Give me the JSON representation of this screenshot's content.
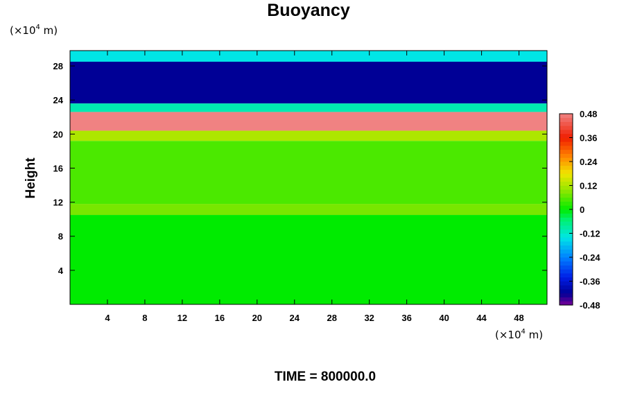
{
  "chart_data": {
    "type": "heatmap",
    "title": "Buoyancy",
    "xunit_prefix": "(×10",
    "xunit_exp": "4",
    "xunit_suffix": " m)",
    "yunit_prefix": "(×10",
    "yunit_exp": "4",
    "yunit_suffix": " m)",
    "ylabel": "Height",
    "xlabel": "",
    "xlim": [
      0,
      51
    ],
    "ylim": [
      0,
      29.8
    ],
    "xticks": [
      4,
      8,
      12,
      16,
      20,
      24,
      28,
      32,
      36,
      40,
      44,
      48
    ],
    "yticks": [
      4,
      8,
      12,
      16,
      20,
      24,
      28
    ],
    "colorbar": {
      "min": -0.48,
      "max": 0.48,
      "step": 0.02,
      "tick_values": [
        0.48,
        0.36,
        0.24,
        0.12,
        0,
        -0.12,
        -0.24,
        -0.36,
        -0.48
      ],
      "tick_labels": [
        "0.48",
        "0.36",
        "0.24",
        "0.12",
        "0",
        "-0.12",
        "-0.24",
        "-0.36",
        "-0.48"
      ]
    },
    "footer": "TIME = 800000.0",
    "layers": [
      {
        "height_range": [
          0,
          10.5
        ],
        "buoyancy": 0.0
      },
      {
        "height_range": [
          10.5,
          11.8
        ],
        "buoyancy": 0.08
      },
      {
        "height_range": [
          11.8,
          19.2
        ],
        "buoyancy": 0.05
      },
      {
        "height_range": [
          19.2,
          20.4
        ],
        "buoyancy": 0.12
      },
      {
        "height_range": [
          20.4,
          22.6
        ],
        "buoyancy": 0.48
      },
      {
        "height_range": [
          22.6,
          23.6
        ],
        "buoyancy": -0.1
      },
      {
        "height_range": [
          23.6,
          28.5
        ],
        "buoyancy": -0.42
      },
      {
        "height_range": [
          28.5,
          29.8
        ],
        "buoyancy": -0.14
      }
    ]
  }
}
